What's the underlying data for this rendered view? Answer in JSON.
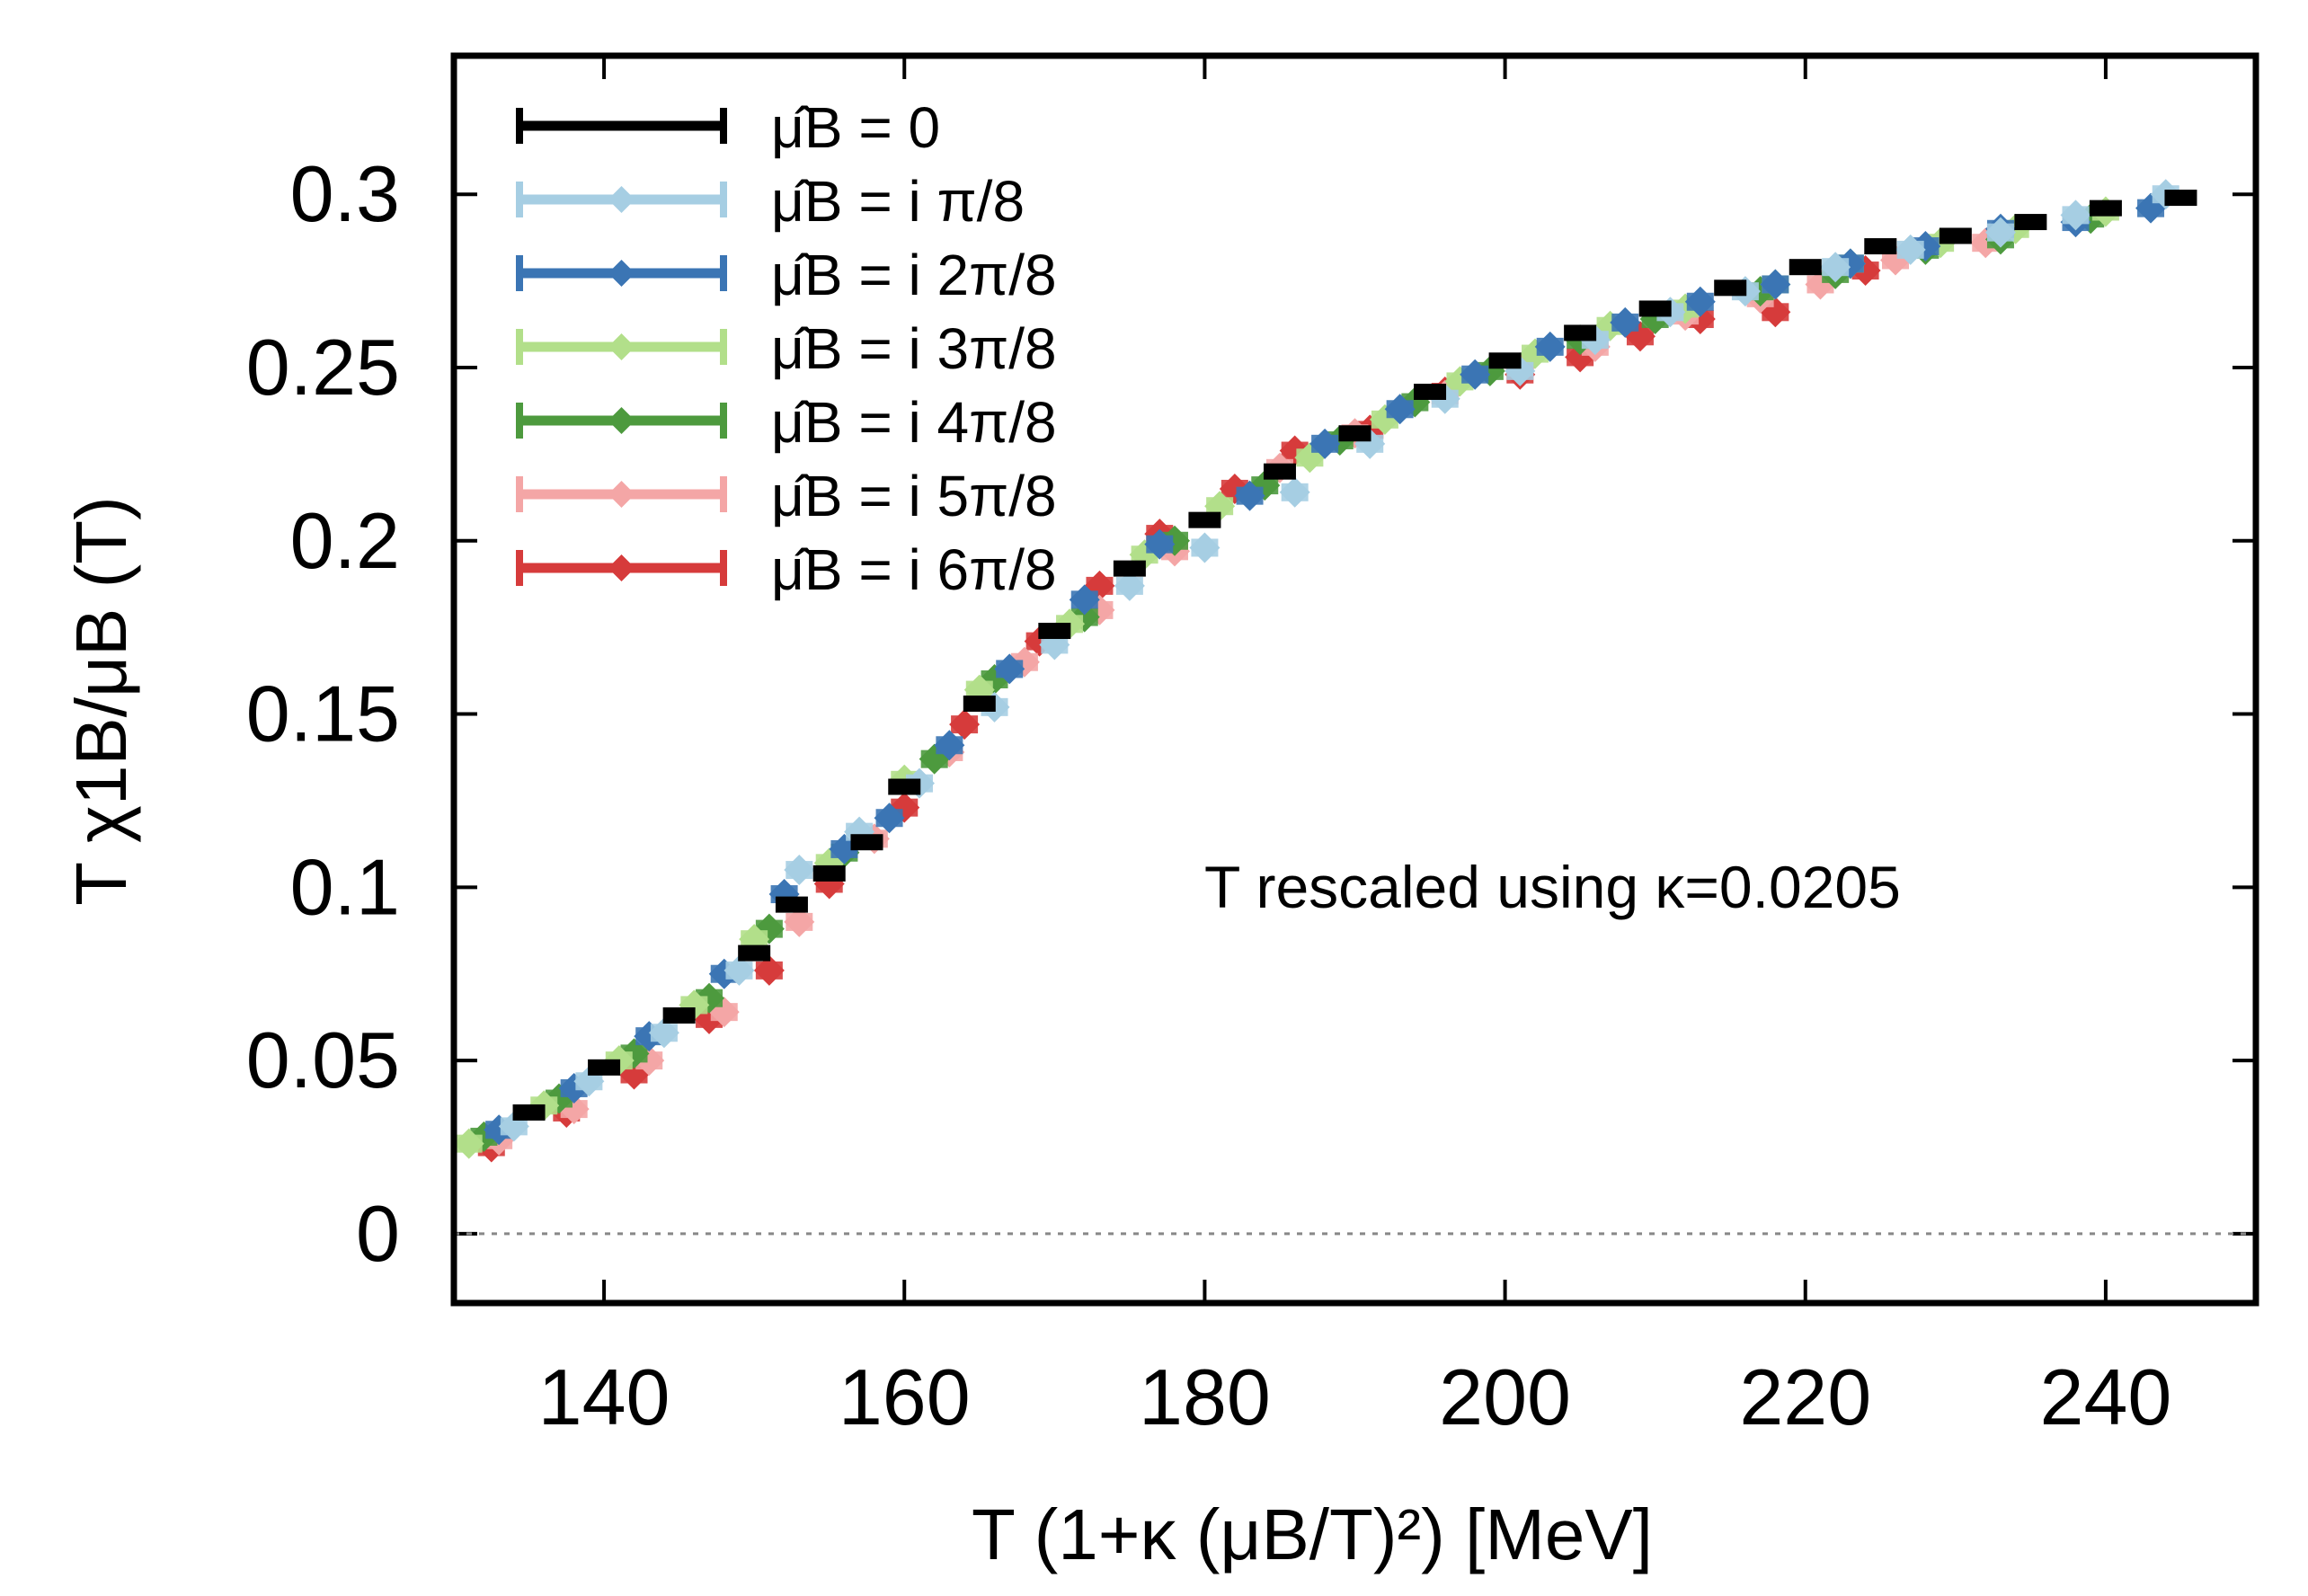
{
  "chart_data": {
    "type": "scatter",
    "title": "",
    "xlabel": "T (1+κ (μB/T)²)  [MeV]",
    "ylabel": "T χ1B/μB (T)",
    "xlim": [
      130,
      250
    ],
    "ylim": [
      -0.02,
      0.34
    ],
    "xticks": [
      140,
      160,
      180,
      200,
      220,
      240
    ],
    "xtick_labels": [
      "140",
      "160",
      "180",
      "200",
      "220",
      "240"
    ],
    "yticks": [
      0,
      0.05,
      0.1,
      0.15,
      0.2,
      0.25,
      0.3
    ],
    "ytick_labels": [
      "0",
      "0.05",
      "0.1",
      "0.15",
      "0.2",
      "0.25",
      "0.3"
    ],
    "grid": false,
    "legend_position": "top-left",
    "zero_line": true,
    "annotation": "T rescaled using κ=0.0205",
    "series": [
      {
        "name": "μ̂B = 0",
        "color": "#000000",
        "marker": "bar",
        "x": [
          135,
          140,
          145,
          150,
          152.5,
          155,
          157.5,
          160,
          165,
          170,
          175,
          180,
          185,
          190,
          195,
          200,
          205,
          210,
          215,
          220,
          225,
          230,
          235,
          240,
          245
        ],
        "y": [
          0.035,
          0.048,
          0.063,
          0.081,
          0.095,
          0.104,
          0.113,
          0.129,
          0.153,
          0.174,
          0.192,
          0.206,
          0.22,
          0.231,
          0.243,
          0.252,
          0.26,
          0.267,
          0.273,
          0.279,
          0.285,
          0.288,
          0.292,
          0.296,
          0.299
        ]
      },
      {
        "name": "μ̂B = i π/8",
        "color": "#a6cee3",
        "marker": "diamond",
        "x": [
          134,
          139,
          144,
          149,
          153,
          157,
          161,
          166,
          170,
          175,
          180,
          186,
          191,
          196,
          201,
          206,
          211,
          216,
          222,
          227,
          233,
          238,
          244
        ],
        "y": [
          0.031,
          0.044,
          0.058,
          0.076,
          0.105,
          0.116,
          0.13,
          0.152,
          0.17,
          0.187,
          0.198,
          0.214,
          0.228,
          0.241,
          0.249,
          0.258,
          0.266,
          0.272,
          0.279,
          0.284,
          0.289,
          0.294,
          0.3
        ]
      },
      {
        "name": "μ̂B = i 2π/8",
        "color": "#3b75b4",
        "marker": "diamond",
        "x": [
          133,
          138,
          143,
          148,
          152,
          156,
          159,
          163,
          167,
          172,
          177,
          183,
          188,
          193,
          198,
          203,
          208,
          213,
          218,
          223,
          228,
          233,
          238,
          243
        ],
        "y": [
          0.03,
          0.042,
          0.057,
          0.075,
          0.098,
          0.111,
          0.12,
          0.141,
          0.163,
          0.183,
          0.199,
          0.213,
          0.228,
          0.238,
          0.248,
          0.256,
          0.263,
          0.269,
          0.274,
          0.28,
          0.285,
          0.29,
          0.292,
          0.296
        ]
      },
      {
        "name": "μ̂B = i 3π/8",
        "color": "#b2df8a",
        "marker": "diamond",
        "x": [
          131,
          136,
          141,
          146,
          150,
          155,
          160,
          165,
          171,
          176,
          181,
          187,
          192,
          197,
          202,
          207,
          212,
          218,
          223,
          229,
          234,
          240
        ],
        "y": [
          0.026,
          0.037,
          0.05,
          0.066,
          0.085,
          0.107,
          0.131,
          0.157,
          0.176,
          0.196,
          0.21,
          0.224,
          0.235,
          0.246,
          0.254,
          0.262,
          0.267,
          0.274,
          0.28,
          0.286,
          0.29,
          0.295
        ]
      },
      {
        "name": "μ̂B = i 4π/8",
        "color": "#4d9a3e",
        "marker": "diamond",
        "x": [
          132,
          137,
          142,
          147,
          151,
          156,
          162,
          166,
          172,
          178,
          184,
          189,
          194,
          199,
          205,
          210,
          217,
          222,
          228,
          233,
          239
        ],
        "y": [
          0.028,
          0.039,
          0.052,
          0.068,
          0.088,
          0.11,
          0.137,
          0.16,
          0.178,
          0.2,
          0.216,
          0.229,
          0.24,
          0.249,
          0.258,
          0.264,
          0.272,
          0.277,
          0.284,
          0.287,
          0.293
        ]
      },
      {
        "name": "μ̂B = i 5π/8",
        "color": "#f4a6a6",
        "marker": "diamond",
        "x": [
          133,
          138,
          143,
          148,
          153,
          158,
          163,
          168,
          173,
          178,
          185,
          190,
          196,
          201,
          206,
          212,
          217,
          221,
          226,
          232
        ],
        "y": [
          0.027,
          0.036,
          0.05,
          0.064,
          0.09,
          0.114,
          0.139,
          0.165,
          0.18,
          0.197,
          0.221,
          0.231,
          0.242,
          0.25,
          0.256,
          0.265,
          0.27,
          0.274,
          0.281,
          0.286
        ]
      },
      {
        "name": "μ̂B = i 6π/8",
        "color": "#d63b3b",
        "marker": "diamond",
        "x": [
          132.5,
          137.5,
          142,
          147,
          151,
          155,
          160,
          164,
          169,
          173,
          177,
          182,
          186,
          191,
          196,
          201,
          205,
          209,
          213,
          218,
          224
        ],
        "y": [
          0.025,
          0.035,
          0.046,
          0.062,
          0.076,
          0.101,
          0.123,
          0.147,
          0.171,
          0.187,
          0.202,
          0.215,
          0.226,
          0.232,
          0.243,
          0.248,
          0.253,
          0.259,
          0.264,
          0.266,
          0.278
        ]
      }
    ]
  }
}
